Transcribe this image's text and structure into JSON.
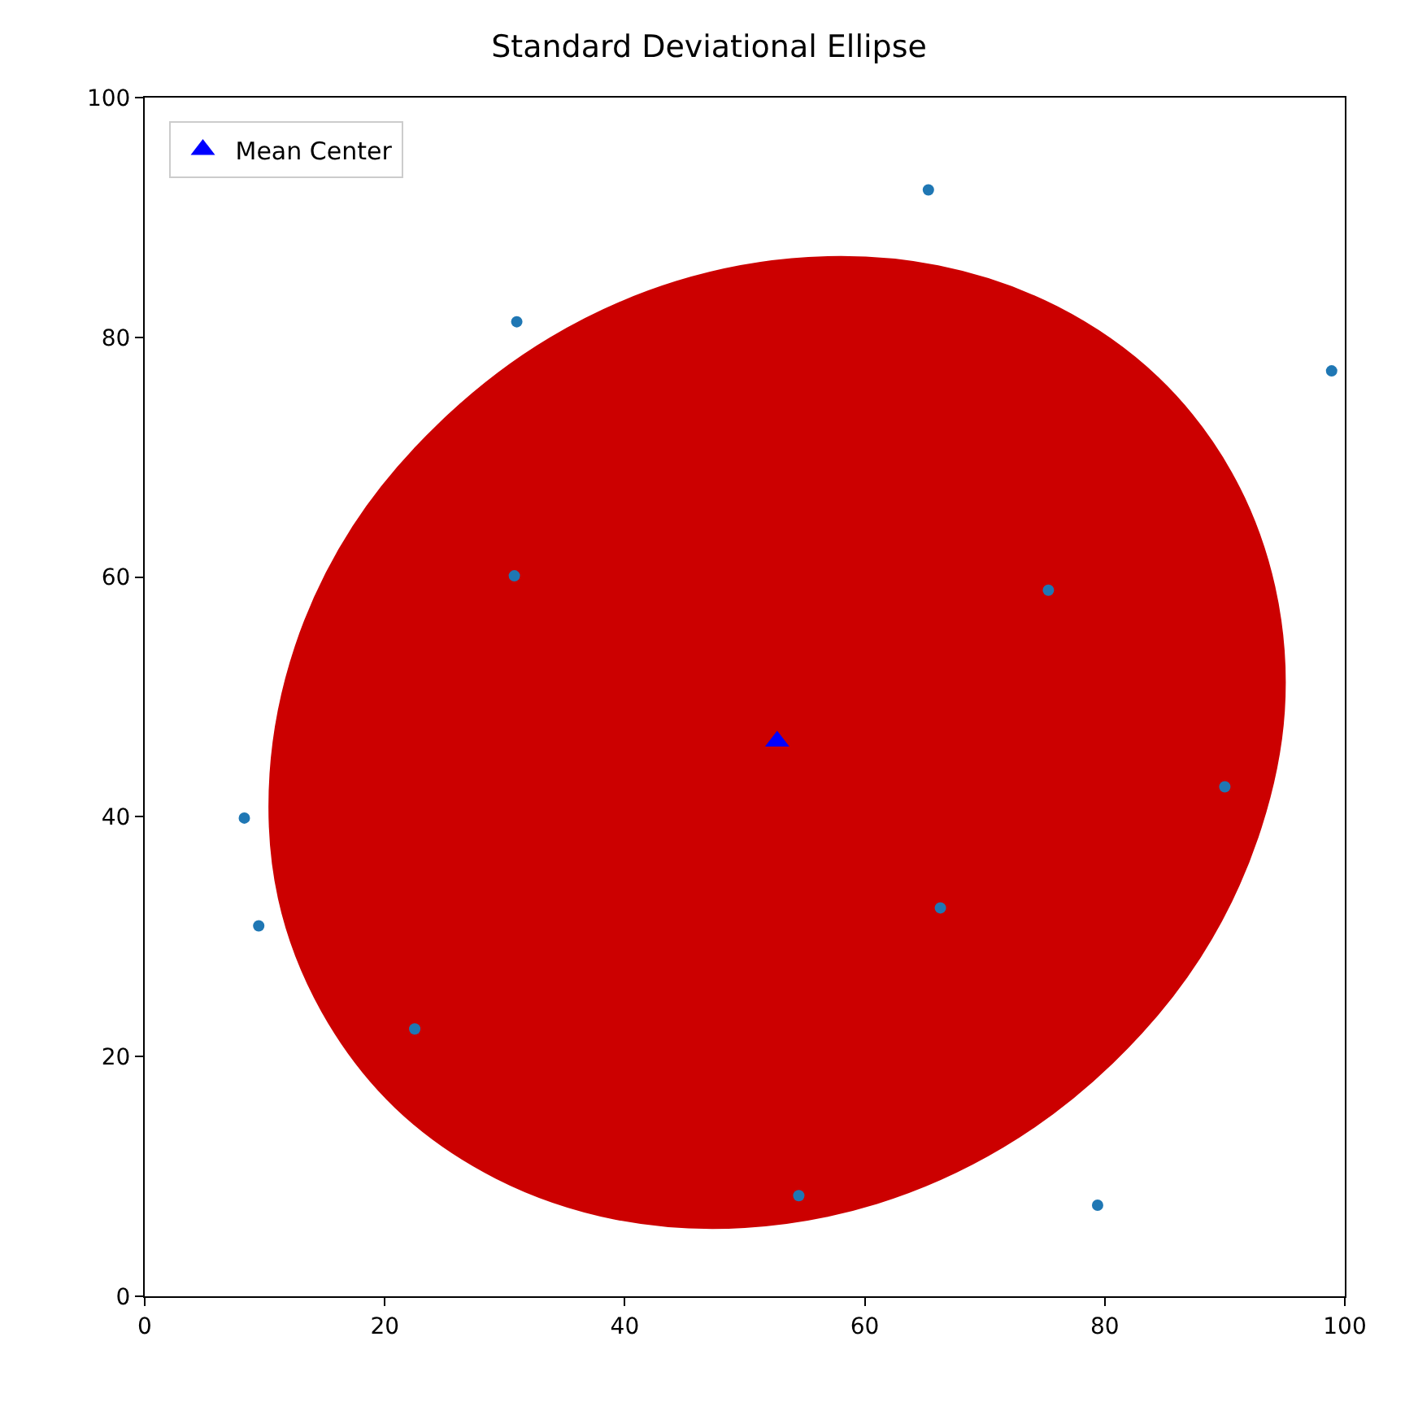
{
  "chart_data": {
    "type": "scatter",
    "title": "Standard Deviational Ellipse",
    "xlim": [
      0,
      100
    ],
    "ylim": [
      0,
      100
    ],
    "xticks": [
      0,
      20,
      40,
      60,
      80,
      100
    ],
    "yticks": [
      0,
      20,
      40,
      60,
      80,
      100
    ],
    "legend": "top left",
    "series": [
      {
        "type": "area",
        "color": "#cc0000",
        "marker": "none",
        "x": [
          94.9,
          94.1,
          90.5,
          84.4,
          76.0,
          66.1,
          55.3,
          44.3,
          33.8,
          24.7,
          17.4,
          12.6,
          10.5,
          11.2,
          14.8,
          20.9,
          29.3,
          39.2,
          50.0,
          61.0,
          71.5,
          80.6,
          87.9,
          92.7,
          94.9
        ],
        "values": [
          48.8,
          59.2,
          68.7,
          76.6,
          82.5,
          85.9,
          86.6,
          84.6,
          79.9,
          72.9,
          64.2,
          54.2,
          43.6,
          33.2,
          23.8,
          15.8,
          9.9,
          6.5,
          5.8,
          7.8,
          12.5,
          19.5,
          28.3,
          38.3,
          48.8
        ]
      },
      {
        "color": "#1f77b4",
        "marker": "circle",
        "x": [
          65.3,
          31.0,
          98.9,
          30.8,
          75.3,
          8.3,
          90.0,
          9.5,
          66.3,
          22.5,
          54.5,
          79.4
        ],
        "values": [
          92.3,
          81.3,
          77.2,
          60.1,
          58.9,
          39.9,
          42.5,
          30.9,
          32.4,
          22.3,
          8.4,
          7.6
        ]
      },
      {
        "name": "Mean Center",
        "color": "#0000ff",
        "marker": "triangle",
        "x": [
          52.7
        ],
        "values": [
          46.3
        ]
      }
    ]
  }
}
